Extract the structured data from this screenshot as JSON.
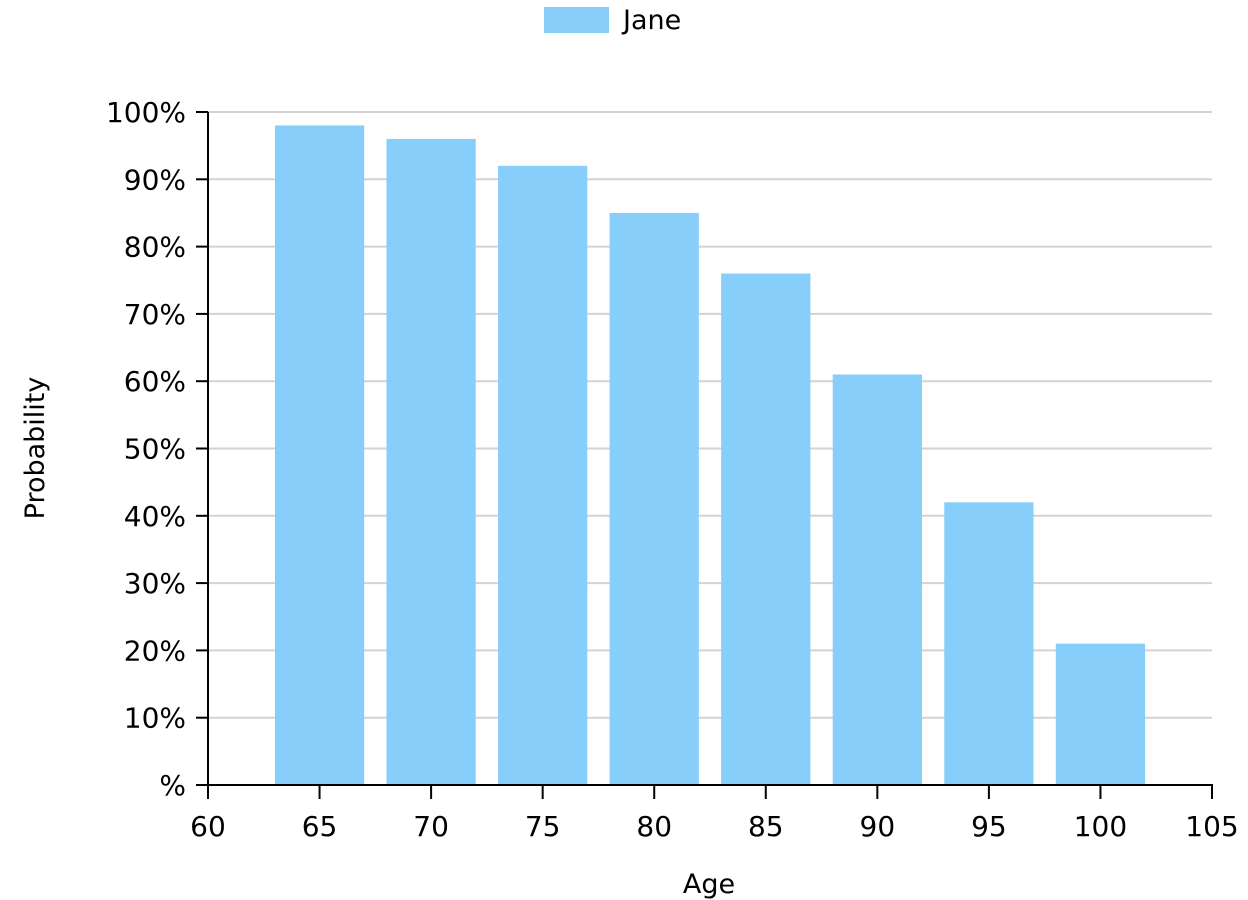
{
  "chart_data": {
    "type": "bar",
    "title": "",
    "xlabel": "Age",
    "ylabel": "Probability",
    "xlim": [
      60,
      105
    ],
    "ylim": [
      0,
      100
    ],
    "xticks": [
      "60",
      "65",
      "70",
      "75",
      "80",
      "85",
      "90",
      "95",
      "100",
      "105"
    ],
    "yticks": [
      "%",
      "10%",
      "20%",
      "30%",
      "40%",
      "50%",
      "60%",
      "70%",
      "80%",
      "90%",
      "100%"
    ],
    "grid": true,
    "legend_position": "top-center",
    "series": [
      {
        "name": "Jane",
        "color": "#87CEFA",
        "x": [
          65,
          70,
          75,
          80,
          85,
          90,
          95,
          100
        ],
        "values": [
          98,
          96,
          92,
          85,
          76,
          61,
          42,
          21
        ]
      }
    ]
  }
}
